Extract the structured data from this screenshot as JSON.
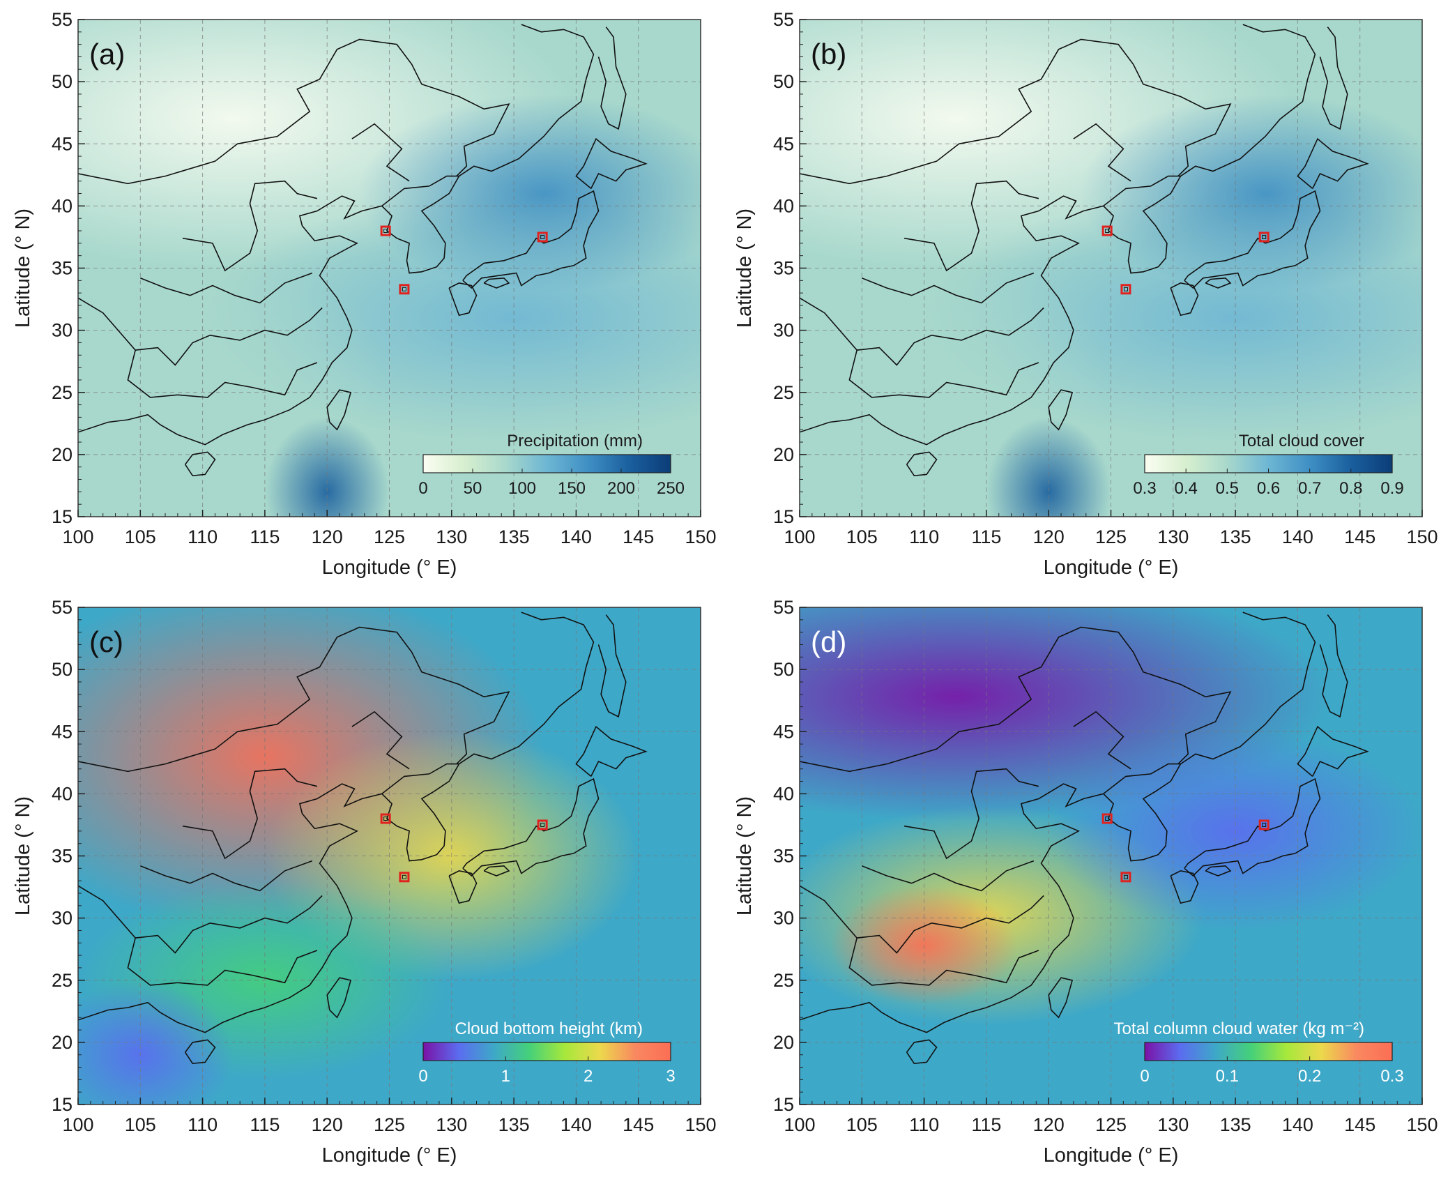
{
  "axes": {
    "x_label": "Longitude (° E)",
    "y_label": "Latitude (° N)",
    "x_ticks": [
      "100",
      "105",
      "110",
      "115",
      "120",
      "125",
      "130",
      "135",
      "140",
      "145",
      "150"
    ],
    "y_ticks": [
      "15",
      "20",
      "25",
      "30",
      "35",
      "40",
      "45",
      "50",
      "55"
    ],
    "xlim": [
      100,
      150
    ],
    "ylim": [
      15,
      55
    ],
    "grid": true
  },
  "sites": [
    {
      "lon": 124.7,
      "lat": 38.0
    },
    {
      "lon": 137.3,
      "lat": 37.5
    },
    {
      "lon": 126.2,
      "lat": 33.3
    }
  ],
  "panels": [
    {
      "label": "(a)",
      "colorbar_title": "Precipitation (mm)",
      "colorbar_ticks": [
        "0",
        "50",
        "100",
        "150",
        "200",
        "250"
      ],
      "colorbar_range": [
        0,
        250
      ],
      "colormap": [
        "#fbfdf2",
        "#d7efcf",
        "#a8d8cc",
        "#6db6d3",
        "#3f8fc4",
        "#1a5f9e",
        "#0b3d78"
      ],
      "label_color": "#111111"
    },
    {
      "label": "(b)",
      "colorbar_title": "Total cloud cover",
      "colorbar_ticks": [
        "0.3",
        "0.4",
        "0.5",
        "0.6",
        "0.7",
        "0.8",
        "0.9"
      ],
      "colorbar_range": [
        0.3,
        0.9
      ],
      "colormap": [
        "#fbfdf2",
        "#d7efcf",
        "#a8d8cc",
        "#6db6d3",
        "#3f8fc4",
        "#1a5f9e",
        "#0b3d78"
      ],
      "label_color": "#111111"
    },
    {
      "label": "(c)",
      "colorbar_title": "Cloud bottom height (km)",
      "colorbar_ticks": [
        "0",
        "1",
        "2",
        "3"
      ],
      "colorbar_range": [
        0,
        3
      ],
      "colormap": [
        "#7b12a6",
        "#5b6cf0",
        "#3ea8c8",
        "#45d07a",
        "#a6e83c",
        "#ecd94c",
        "#f98860",
        "#fb6e55"
      ],
      "label_color": "#111111"
    },
    {
      "label": "(d)",
      "colorbar_title": "Total column cloud water  (kg m⁻²)",
      "colorbar_ticks": [
        "0",
        "0.1",
        "0.2",
        "0.3"
      ],
      "colorbar_range": [
        0,
        0.3
      ],
      "colormap": [
        "#7b12a6",
        "#5b6cf0",
        "#3ea8c8",
        "#45d07a",
        "#a6e83c",
        "#ecd94c",
        "#f98860",
        "#fb6e55"
      ],
      "label_color": "#ffffff"
    }
  ]
}
